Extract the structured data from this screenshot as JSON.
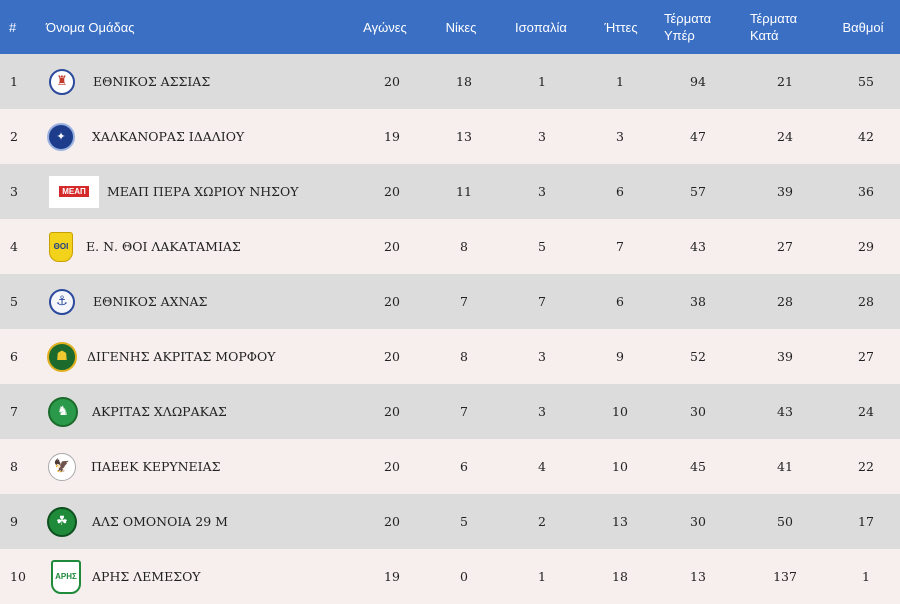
{
  "headers": {
    "pos": "#",
    "team": "Όνομα Ομάδας",
    "played": "Αγώνες",
    "wins": "Νίκες",
    "draws": "Ισοπαλία",
    "losses": "Ήττες",
    "gf_1": "Τέρματα",
    "gf_2": "Υπέρ",
    "ga_1": "Τέρματα",
    "ga_2": "Κατά",
    "points": "Βαθμοί"
  },
  "rows": [
    {
      "pos": "1",
      "team": "ΕΘΝΙΚΟΣ ΑΣΣΙΑΣ",
      "played": "20",
      "wins": "18",
      "draws": "1",
      "losses": "1",
      "gf": "94",
      "ga": "21",
      "points": "55",
      "logo": "ethnikos-assias-crest-icon"
    },
    {
      "pos": "2",
      "team": "ΧΑΛΚΑΝΟΡΑΣ ΙΔΑΛΙΟΥ",
      "played": "19",
      "wins": "13",
      "draws": "3",
      "losses": "3",
      "gf": "47",
      "ga": "24",
      "points": "42",
      "logo": "chalkanoras-crest-icon"
    },
    {
      "pos": "3",
      "team": "ΜΕΑΠ ΠΕΡΑ ΧΩΡΙΟΥ ΝΗΣΟΥ",
      "played": "20",
      "wins": "11",
      "draws": "3",
      "losses": "6",
      "gf": "57",
      "ga": "39",
      "points": "36",
      "logo": "meap-crest-icon",
      "logo_text": "ΜΕΑΠ"
    },
    {
      "pos": "4",
      "team": "Ε. Ν. ΘΟΙ ΛΑΚΑΤΑΜΙΑΣ",
      "played": "20",
      "wins": "8",
      "draws": "5",
      "losses": "7",
      "gf": "43",
      "ga": "27",
      "points": "29",
      "logo": "thoi-crest-icon",
      "logo_text": "ΘΟΙ"
    },
    {
      "pos": "5",
      "team": "ΕΘΝΙΚΟΣ ΑΧΝΑΣ",
      "played": "20",
      "wins": "7",
      "draws": "7",
      "losses": "6",
      "gf": "38",
      "ga": "28",
      "points": "28",
      "logo": "ethnikos-achnas-crest-icon"
    },
    {
      "pos": "6",
      "team": "ΔΙΓΕΝΗΣ ΑΚΡΙΤΑΣ ΜΟΡΦΟΥ",
      "played": "20",
      "wins": "8",
      "draws": "3",
      "losses": "9",
      "gf": "52",
      "ga": "39",
      "points": "27",
      "logo": "digenis-crest-icon"
    },
    {
      "pos": "7",
      "team": "ΑΚΡΙΤΑΣ ΧΛΩΡΑΚΑΣ",
      "played": "20",
      "wins": "7",
      "draws": "3",
      "losses": "10",
      "gf": "30",
      "ga": "43",
      "points": "24",
      "logo": "akritas-crest-icon"
    },
    {
      "pos": "8",
      "team": "ΠΑΕΕΚ ΚΕΡΥΝΕΙΑΣ",
      "played": "20",
      "wins": "6",
      "draws": "4",
      "losses": "10",
      "gf": "45",
      "ga": "41",
      "points": "22",
      "logo": "paeek-eagle-crest-icon"
    },
    {
      "pos": "9",
      "team": "ΑΛΣ ΟΜΟΝΟΙΑ 29 Μ",
      "played": "20",
      "wins": "5",
      "draws": "2",
      "losses": "13",
      "gf": "30",
      "ga": "50",
      "points": "17",
      "logo": "omonoia-clover-crest-icon"
    },
    {
      "pos": "10",
      "team": "ΑΡΗΣ ΛΕΜΕΣΟΥ",
      "played": "19",
      "wins": "0",
      "draws": "1",
      "losses": "18",
      "gf": "13",
      "ga": "137",
      "points": "1",
      "logo": "aris-crest-icon",
      "logo_text": "ΑΡΗΣ"
    }
  ],
  "colors": {
    "header_bg": "#3a6fc4",
    "row_odd": "#dcdcdc",
    "row_even": "#f7eeee"
  }
}
